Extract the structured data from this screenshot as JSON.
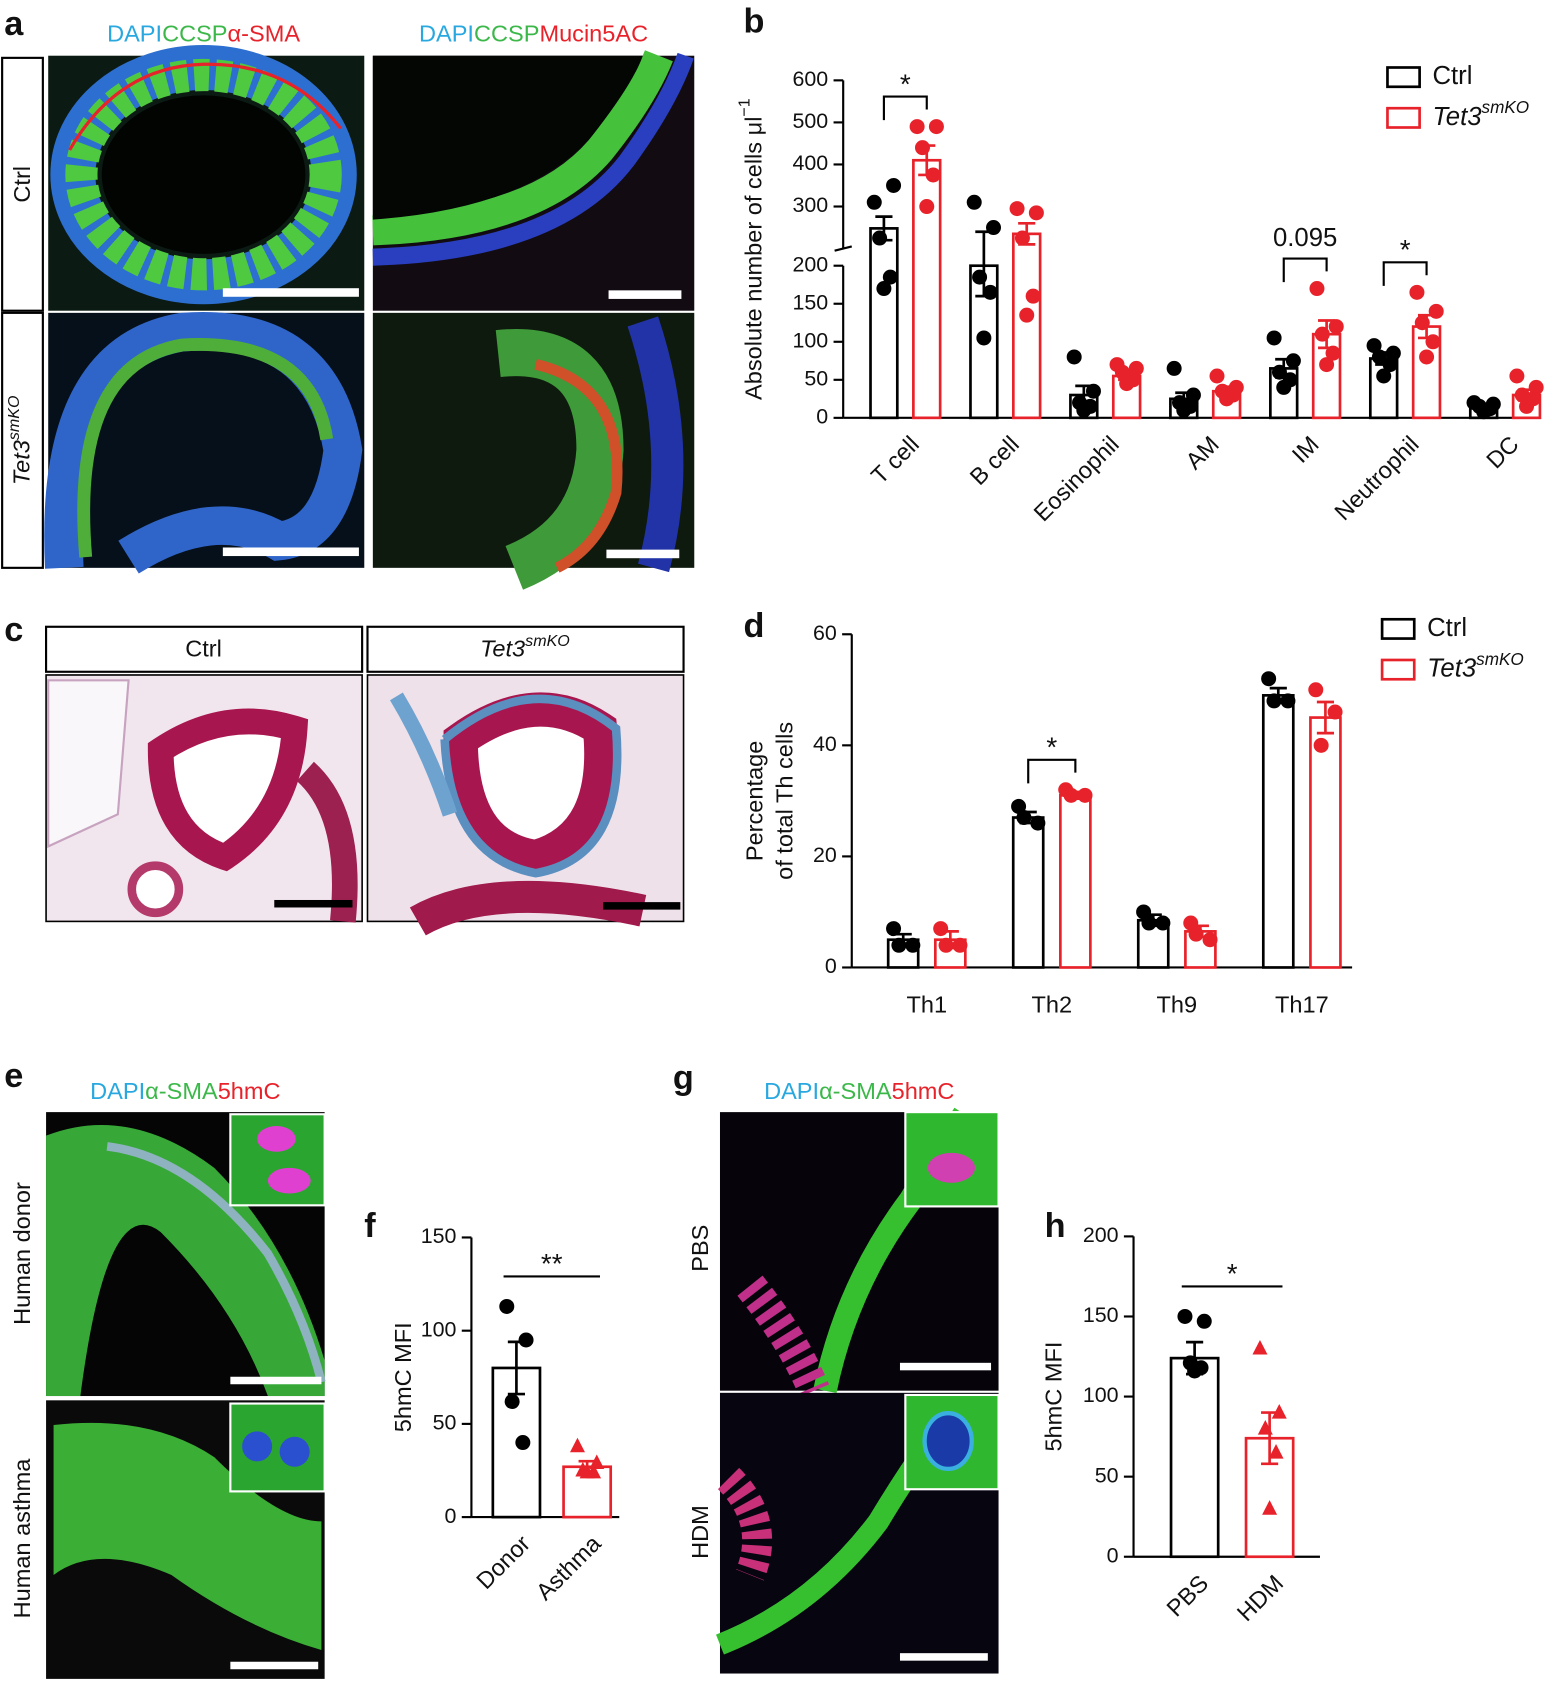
{
  "panel_labels": [
    "a",
    "b",
    "c",
    "d",
    "e",
    "f",
    "g",
    "h"
  ],
  "panel_a": {
    "stains_left": [
      "DAPI",
      "CCSP",
      "α-SMA"
    ],
    "stains_right": [
      "DAPI",
      "CCSP",
      "Mucin5AC"
    ],
    "row_ctrl": "Ctrl",
    "row_ko": "Tet3",
    "row_ko_sup": "smKO"
  },
  "panel_c": {
    "header_ctrl": "Ctrl",
    "header_ko": "Tet3",
    "header_ko_sup": "smKO"
  },
  "panel_e": {
    "stains": [
      "DAPI",
      "α-SMA",
      "5hmC"
    ],
    "rows": [
      "Human donor",
      "Human asthma"
    ]
  },
  "panel_g": {
    "stains": [
      "DAPI",
      "α-SMA",
      "5hmC"
    ],
    "rows": [
      "PBS",
      "HDM"
    ]
  },
  "chart_data": [
    {
      "type": "bar",
      "ylabel": "Absolute number of cells μl",
      "ylabel_sup": "−1",
      "categories": [
        "T cell",
        "B cell",
        "Eosinophil",
        "AM",
        "IM",
        "Neutrophil",
        "DC"
      ],
      "ylim": [
        0,
        600
      ],
      "ybreak": 200,
      "yticks": [
        0,
        50,
        100,
        150,
        200,
        300,
        400,
        500,
        600
      ],
      "series": [
        {
          "name": "Ctrl",
          "color": "#000000",
          "values": [
            248,
            200,
            30,
            25,
            65,
            78,
            15
          ],
          "errors": [
            28,
            40,
            12,
            8,
            12,
            8,
            3
          ],
          "points": [
            [
              310,
              350,
              225,
              185,
              170
            ],
            [
              310,
              250,
              185,
              165,
              105
            ],
            [
              80,
              35,
              20,
              15,
              10
            ],
            [
              65,
              30,
              20,
              15,
              10
            ],
            [
              105,
              75,
              60,
              50,
              40
            ],
            [
              95,
              85,
              80,
              70,
              55
            ],
            [
              20,
              18,
              15,
              12,
              8
            ]
          ]
        },
        {
          "name": "Tet3",
          "name_sup": "smKO",
          "color": "#e8222a",
          "values": [
            410,
            235,
            55,
            35,
            110,
            120,
            30
          ],
          "errors": [
            35,
            25,
            5,
            6,
            18,
            15,
            7
          ],
          "points": [
            [
              490,
              490,
              440,
              375,
              300
            ],
            [
              295,
              285,
              225,
              160,
              135
            ],
            [
              70,
              65,
              60,
              50,
              45
            ],
            [
              55,
              40,
              35,
              30,
              25
            ],
            [
              170,
              120,
              110,
              85,
              70
            ],
            [
              165,
              140,
              125,
              100,
              80
            ],
            [
              55,
              40,
              30,
              25,
              15
            ]
          ]
        }
      ],
      "annotations": [
        {
          "text": "*",
          "category": "T cell"
        },
        {
          "text": "0.095",
          "category": "IM"
        },
        {
          "text": "*",
          "category": "Neutrophil"
        }
      ]
    },
    {
      "type": "bar",
      "ylabel": [
        "Percentage",
        "of total Th cells"
      ],
      "categories": [
        "Th1",
        "Th2",
        "Th9",
        "Th17"
      ],
      "ylim": [
        0,
        60
      ],
      "yticks": [
        0,
        20,
        40,
        60
      ],
      "series": [
        {
          "name": "Ctrl",
          "color": "#000000",
          "values": [
            5,
            27,
            8.5,
            49
          ],
          "errors": [
            1,
            1,
            1,
            1.3
          ],
          "points": [
            [
              7,
              4,
              4
            ],
            [
              29,
              26,
              27
            ],
            [
              10,
              8,
              8
            ],
            [
              52,
              48,
              48
            ]
          ]
        },
        {
          "name": "Tet3",
          "name_sup": "smKO",
          "color": "#e8222a",
          "values": [
            5,
            31,
            6.5,
            45
          ],
          "errors": [
            1.5,
            0.6,
            1,
            2.8
          ],
          "points": [
            [
              7,
              4,
              4
            ],
            [
              32,
              31,
              31
            ],
            [
              8,
              5,
              6
            ],
            [
              50,
              46,
              40
            ]
          ]
        }
      ],
      "annotations": [
        {
          "text": "*",
          "category": "Th2"
        }
      ]
    },
    {
      "type": "bar",
      "ylabel": "5hmC MFI",
      "categories": [
        "Donor",
        "Asthma"
      ],
      "ylim": [
        0,
        150
      ],
      "yticks": [
        0,
        50,
        100,
        150
      ],
      "values": [
        80,
        27
      ],
      "errors": [
        14,
        3
      ],
      "colors": [
        "#000000",
        "#e8222a"
      ],
      "markers": [
        "circle",
        "triangle"
      ],
      "points": [
        [
          113,
          95,
          62,
          40
        ],
        [
          38,
          29,
          25,
          24,
          24
        ]
      ],
      "annotations": [
        {
          "text": "**"
        }
      ]
    },
    {
      "type": "bar",
      "ylabel": "5hmC MFI",
      "categories": [
        "PBS",
        "HDM"
      ],
      "ylim": [
        0,
        200
      ],
      "yticks": [
        0,
        50,
        100,
        150,
        200
      ],
      "values": [
        124,
        74
      ],
      "errors": [
        10,
        16
      ],
      "colors": [
        "#000000",
        "#e8222a"
      ],
      "markers": [
        "circle",
        "triangle"
      ],
      "points": [
        [
          150,
          147,
          121,
          118,
          116
        ],
        [
          130,
          90,
          80,
          65,
          30
        ]
      ],
      "annotations": [
        {
          "text": "*"
        }
      ]
    }
  ]
}
